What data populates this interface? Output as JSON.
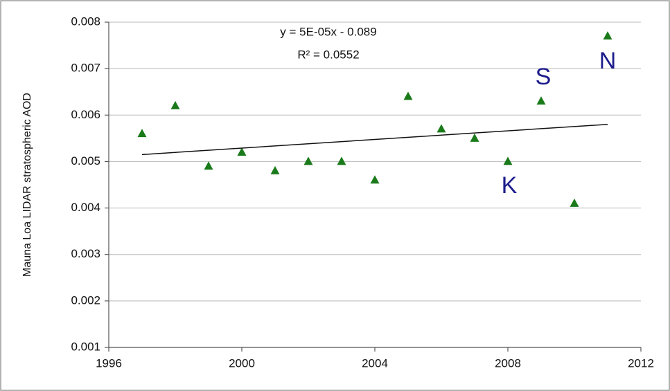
{
  "chart_data": {
    "type": "scatter",
    "y_label": "Mauna Loa LIDAR stratospheric AOD",
    "x": [
      1997,
      1998,
      1999,
      2000,
      2001,
      2002,
      2003,
      2004,
      2005,
      2006,
      2007,
      2008,
      2009,
      2010,
      2011
    ],
    "values": [
      0.0056,
      0.0062,
      0.0049,
      0.0052,
      0.0048,
      0.005,
      0.005,
      0.0046,
      0.0064,
      0.0057,
      0.0055,
      0.005,
      0.0063,
      0.0041,
      0.0077
    ],
    "color": "#1a7a1a",
    "trendline": {
      "x": [
        1997,
        2011
      ],
      "values": [
        0.00515,
        0.0058
      ],
      "color": "#111111"
    },
    "equation": "y = 5E-05x - 0.089",
    "r_squared": "R² = 0.0552",
    "annotations": [
      "S",
      "N",
      "K"
    ],
    "xlim": [
      1996,
      2012
    ],
    "xticks": [
      1996,
      2000,
      2004,
      2008,
      2012
    ],
    "ylim": [
      0.001,
      0.008
    ],
    "yticks": [
      0.001,
      0.002,
      0.003,
      0.004,
      0.005,
      0.006,
      0.007,
      0.008
    ],
    "grid": true
  }
}
